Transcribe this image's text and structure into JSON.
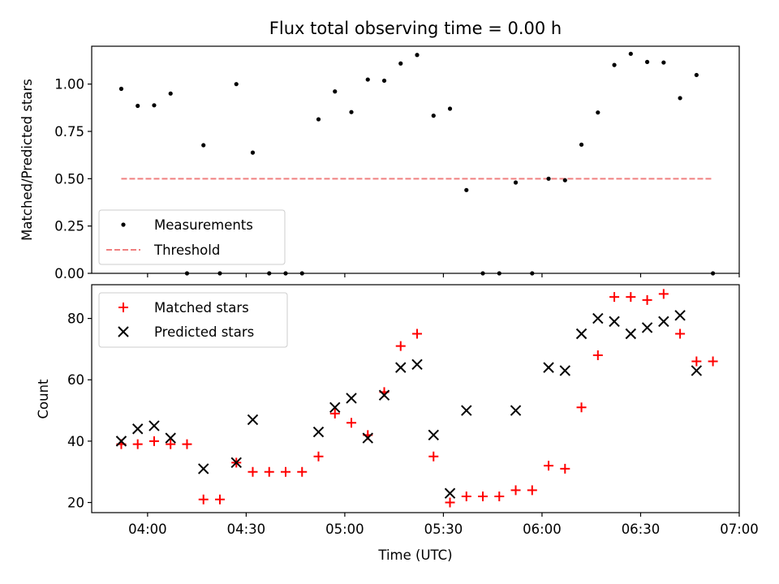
{
  "chart_data": [
    {
      "type": "scatter",
      "title": "Flux total observing time = 0.00 h",
      "ylabel": "Matched/Predicted stars",
      "xlabel": "",
      "ylim": [
        0.0,
        1.2
      ],
      "yticks": [
        0.0,
        0.25,
        0.5,
        0.75,
        1.0
      ],
      "ytick_labels": [
        "0.00",
        "0.25",
        "0.50",
        "0.75",
        "1.00"
      ],
      "legend_position": "lower-left",
      "series": [
        {
          "name": "Measurements",
          "marker": "dot",
          "color": "#000000",
          "points": [
            [
              "03:52",
              0.975
            ],
            [
              "03:57",
              0.885
            ],
            [
              "04:02",
              0.888
            ],
            [
              "04:07",
              0.95
            ],
            [
              "04:12",
              0.0
            ],
            [
              "04:17",
              0.677
            ],
            [
              "04:22",
              0.0
            ],
            [
              "04:27",
              1.0
            ],
            [
              "04:32",
              0.638
            ],
            [
              "04:37",
              0.0
            ],
            [
              "04:42",
              0.0
            ],
            [
              "04:47",
              0.0
            ],
            [
              "04:52",
              0.814
            ],
            [
              "04:57",
              0.961
            ],
            [
              "05:02",
              0.852
            ],
            [
              "05:07",
              1.024
            ],
            [
              "05:12",
              1.018
            ],
            [
              "05:17",
              1.109
            ],
            [
              "05:22",
              1.154
            ],
            [
              "05:27",
              0.833
            ],
            [
              "05:32",
              0.87
            ],
            [
              "05:37",
              0.44
            ],
            [
              "05:42",
              0.0
            ],
            [
              "05:47",
              0.0
            ],
            [
              "05:52",
              0.48
            ],
            [
              "05:57",
              0.0
            ],
            [
              "06:02",
              0.5
            ],
            [
              "06:07",
              0.492
            ],
            [
              "06:12",
              0.68
            ],
            [
              "06:17",
              0.85
            ],
            [
              "06:22",
              1.101
            ],
            [
              "06:27",
              1.16
            ],
            [
              "06:32",
              1.117
            ],
            [
              "06:37",
              1.114
            ],
            [
              "06:42",
              0.926
            ],
            [
              "06:47",
              1.048
            ],
            [
              "06:52",
              0.0
            ]
          ]
        },
        {
          "name": "Threshold",
          "line_style": "dashed",
          "color": "#f08080",
          "x_range": [
            "03:52",
            "06:52"
          ],
          "value": 0.5
        }
      ]
    },
    {
      "type": "scatter",
      "title": "",
      "ylabel": "Count",
      "xlabel": "Time (UTC)",
      "ylim": [
        16.7,
        91.0
      ],
      "yticks": [
        20,
        40,
        60,
        80
      ],
      "ytick_labels": [
        "20",
        "40",
        "60",
        "80"
      ],
      "xticks": [
        "04:00",
        "04:30",
        "05:00",
        "05:30",
        "06:00",
        "06:30",
        "07:00"
      ],
      "xlim": [
        "03:43",
        "07:00"
      ],
      "legend_position": "upper-left",
      "series": [
        {
          "name": "Matched stars",
          "marker": "plus",
          "color": "#ff0000",
          "points": [
            [
              "03:52",
              39
            ],
            [
              "03:57",
              39
            ],
            [
              "04:02",
              40
            ],
            [
              "04:07",
              39
            ],
            [
              "04:12",
              39
            ],
            [
              "04:17",
              21
            ],
            [
              "04:22",
              21
            ],
            [
              "04:27",
              33
            ],
            [
              "04:32",
              30
            ],
            [
              "04:37",
              30
            ],
            [
              "04:42",
              30
            ],
            [
              "04:47",
              30
            ],
            [
              "04:52",
              35
            ],
            [
              "04:57",
              49
            ],
            [
              "05:02",
              46
            ],
            [
              "05:07",
              42
            ],
            [
              "05:12",
              56
            ],
            [
              "05:17",
              71
            ],
            [
              "05:22",
              75
            ],
            [
              "05:27",
              35
            ],
            [
              "05:32",
              20
            ],
            [
              "05:37",
              22
            ],
            [
              "05:42",
              22
            ],
            [
              "05:47",
              22
            ],
            [
              "05:52",
              24
            ],
            [
              "05:57",
              24
            ],
            [
              "06:02",
              32
            ],
            [
              "06:07",
              31
            ],
            [
              "06:12",
              51
            ],
            [
              "06:17",
              68
            ],
            [
              "06:22",
              87
            ],
            [
              "06:27",
              87
            ],
            [
              "06:32",
              86
            ],
            [
              "06:37",
              88
            ],
            [
              "06:42",
              75
            ],
            [
              "06:47",
              66
            ],
            [
              "06:52",
              66
            ]
          ]
        },
        {
          "name": "Predicted stars",
          "marker": "x",
          "color": "#000000",
          "points": [
            [
              "03:52",
              40
            ],
            [
              "03:57",
              44
            ],
            [
              "04:02",
              45
            ],
            [
              "04:07",
              41
            ],
            [
              "04:17",
              31
            ],
            [
              "04:27",
              33
            ],
            [
              "04:32",
              47
            ],
            [
              "04:52",
              43
            ],
            [
              "04:57",
              51
            ],
            [
              "05:02",
              54
            ],
            [
              "05:07",
              41
            ],
            [
              "05:12",
              55
            ],
            [
              "05:17",
              64
            ],
            [
              "05:22",
              65
            ],
            [
              "05:27",
              42
            ],
            [
              "05:32",
              23
            ],
            [
              "05:37",
              50
            ],
            [
              "05:52",
              50
            ],
            [
              "06:02",
              64
            ],
            [
              "06:07",
              63
            ],
            [
              "06:12",
              75
            ],
            [
              "06:17",
              80
            ],
            [
              "06:22",
              79
            ],
            [
              "06:27",
              75
            ],
            [
              "06:32",
              77
            ],
            [
              "06:37",
              79
            ],
            [
              "06:42",
              81
            ],
            [
              "06:47",
              63
            ]
          ]
        }
      ]
    }
  ]
}
